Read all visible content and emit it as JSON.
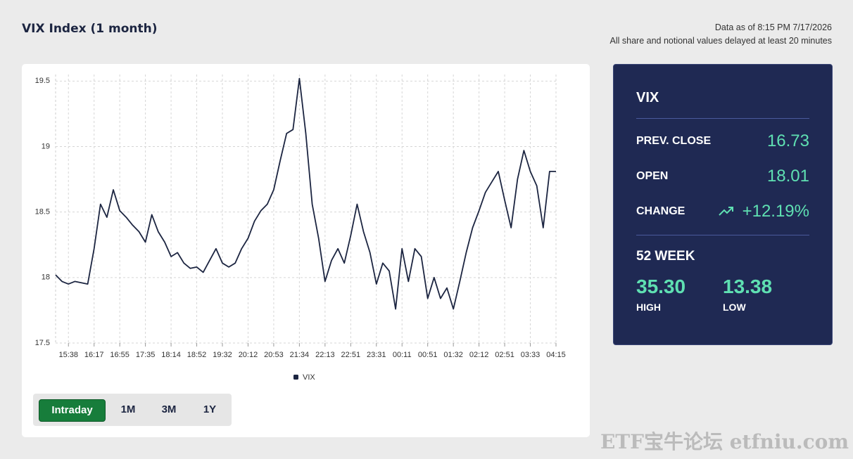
{
  "header": {
    "title": "VIX Index (1 month)",
    "timestamp": "Data as of 8:15 PM 7/17/2026",
    "delay_note": "All share and notional values delayed at least 20 minutes"
  },
  "chart_data": {
    "type": "line",
    "categories": [
      null,
      null,
      "15:38",
      null,
      null,
      null,
      "16:17",
      null,
      null,
      null,
      "16:55",
      null,
      null,
      null,
      "17:35",
      null,
      null,
      null,
      "18:14",
      null,
      null,
      null,
      "18:52",
      null,
      null,
      null,
      "19:32",
      null,
      null,
      null,
      "20:12",
      null,
      null,
      null,
      "20:53",
      null,
      null,
      null,
      "21:34",
      null,
      null,
      null,
      "22:13",
      null,
      null,
      null,
      "22:51",
      null,
      null,
      null,
      "23:31",
      null,
      null,
      null,
      "00:11",
      null,
      null,
      null,
      "00:51",
      null,
      null,
      null,
      "01:32",
      null,
      null,
      null,
      "02:12",
      null,
      null,
      null,
      "02:51",
      null,
      null,
      null,
      "03:33",
      null,
      null,
      null,
      "04:15"
    ],
    "series": [
      {
        "name": "VIX",
        "color": "#1c2541",
        "values": [
          18.02,
          17.97,
          17.95,
          17.97,
          17.96,
          17.95,
          18.22,
          18.56,
          18.46,
          18.67,
          18.51,
          18.46,
          18.4,
          18.35,
          18.27,
          18.48,
          18.35,
          18.27,
          18.16,
          18.19,
          18.11,
          18.07,
          18.08,
          18.04,
          18.13,
          18.22,
          18.11,
          18.08,
          18.11,
          18.22,
          18.3,
          18.43,
          18.51,
          18.56,
          18.67,
          18.89,
          19.1,
          19.13,
          19.52,
          19.1,
          18.56,
          18.3,
          17.97,
          18.13,
          18.22,
          18.11,
          18.32,
          18.56,
          18.35,
          18.19,
          17.95,
          18.11,
          18.05,
          17.76,
          18.22,
          17.97,
          18.22,
          18.16,
          17.84,
          18.0,
          17.84,
          17.92,
          17.76,
          17.97,
          18.19,
          18.38,
          18.51,
          18.65,
          18.73,
          18.81,
          18.59,
          18.38,
          18.75,
          18.97,
          18.81,
          18.7,
          18.38,
          18.81,
          18.81
        ]
      }
    ],
    "ylim": [
      17.5,
      19.55
    ],
    "yticks": [
      17.5,
      18,
      18.5,
      19,
      19.5
    ],
    "grid": true
  },
  "range_buttons": [
    "Intraday",
    "1M",
    "3M",
    "1Y"
  ],
  "quote": {
    "symbol": "VIX",
    "prev_close_label": "PREV. CLOSE",
    "prev_close": "16.73",
    "open_label": "OPEN",
    "open": "18.01",
    "change_label": "CHANGE",
    "change": "+12.19%",
    "week52_label": "52 WEEK",
    "high": "35.30",
    "high_label": "HIGH",
    "low": "13.38",
    "low_label": "LOW"
  },
  "watermark": "ETF宝牛论坛 etfniu.com"
}
